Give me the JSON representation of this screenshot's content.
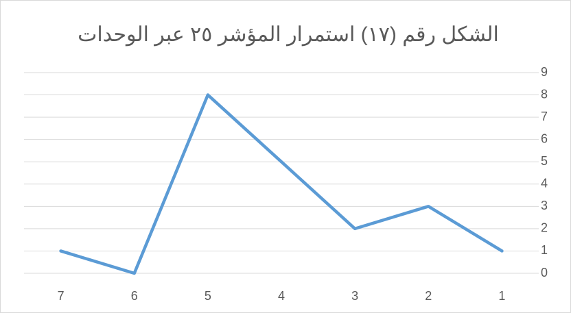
{
  "chart_data": {
    "type": "line",
    "title": "الشكل رقم (١٧) استمرار المؤشر ٢٥ عبر الوحدات",
    "categories": [
      "1",
      "2",
      "3",
      "4",
      "5",
      "6",
      "7"
    ],
    "values": [
      1,
      3,
      2,
      5,
      8,
      0,
      1
    ],
    "color": "#5b9bd5",
    "ylim": [
      0,
      9
    ],
    "yticks": [
      0,
      1,
      2,
      3,
      4,
      5,
      6,
      7,
      8,
      9
    ],
    "grid": true,
    "x_reversed": true,
    "y_axis_side": "right"
  }
}
